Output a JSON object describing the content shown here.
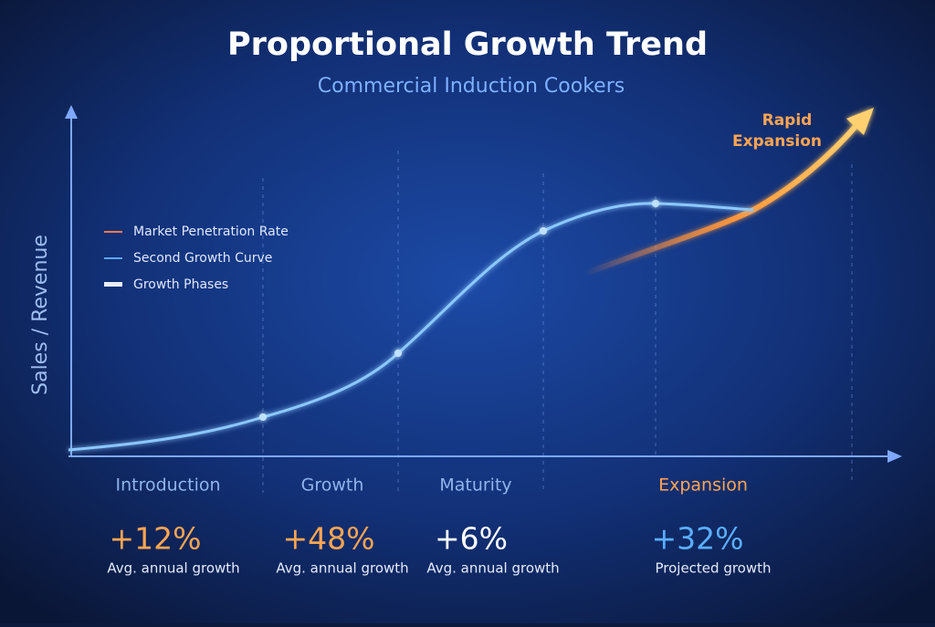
{
  "header": {
    "title": "Proportional Growth Trend",
    "subtitle": "Commercial Induction Cookers"
  },
  "y_axis_label": "Sales / Revenue",
  "legend": [
    "Market Penetration Rate",
    "Second Growth Curve",
    "Growth Phases"
  ],
  "annotation": [
    "Rapid",
    "Expansion"
  ],
  "phases": [
    {
      "name": "Introduction",
      "value": "+12%",
      "caption": "Avg. annual growth"
    },
    {
      "name": "Growth",
      "value": "+48%",
      "caption": "Avg. annual growth"
    },
    {
      "name": "Maturity",
      "value": "+6%",
      "caption": "Avg. annual growth"
    },
    {
      "name": "Expansion",
      "value": "+32%",
      "caption": "Projected growth"
    }
  ]
}
